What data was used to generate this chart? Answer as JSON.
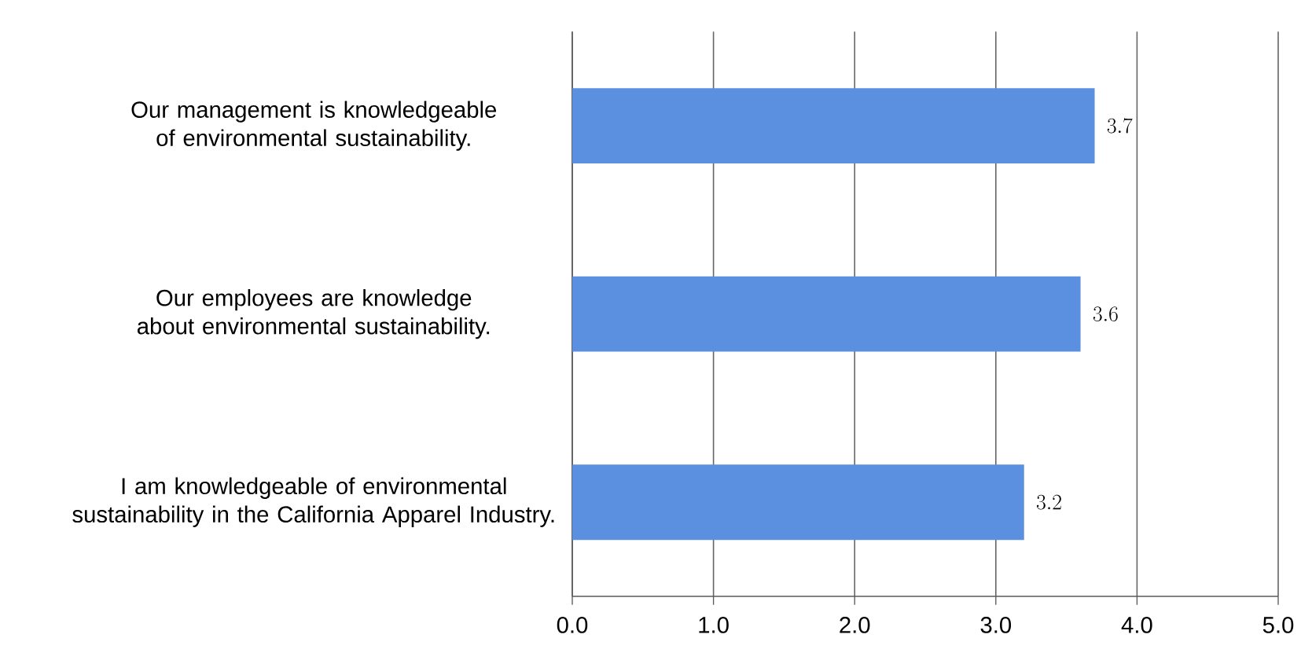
{
  "chart_data": {
    "type": "bar",
    "orientation": "horizontal",
    "categories": [
      "Our management is knowledgeable of environmental sustainability.",
      "Our employees are knowledge about environmental sustainability.",
      "I am knowledgeable of environmental sustainability in the California Apparel Industry."
    ],
    "values": [
      3.7,
      3.6,
      3.2
    ],
    "color": "#5b8fdf",
    "xlim": [
      0,
      5
    ],
    "xticks": [
      {
        "value": 0,
        "label": "0.0"
      },
      {
        "value": 1,
        "label": "1.0"
      },
      {
        "value": 2,
        "label": "2.0"
      },
      {
        "value": 3,
        "label": "3.0"
      },
      {
        "value": 4,
        "label": "4.0"
      },
      {
        "value": 5,
        "label": "5.0"
      }
    ],
    "grid": "x",
    "data_labels": true
  }
}
